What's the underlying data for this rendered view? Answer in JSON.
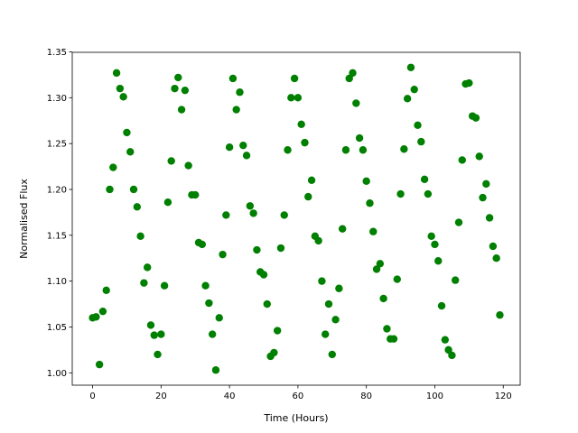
{
  "chart_data": {
    "type": "scatter",
    "xlabel": "Time (Hours)",
    "ylabel": "Normalised Flux",
    "color": "#008000",
    "x": [
      0,
      1,
      2,
      3,
      4,
      5,
      6,
      7,
      8,
      9,
      10,
      11,
      12,
      13,
      14,
      15,
      16,
      17,
      18,
      19,
      20,
      21,
      22,
      23,
      24,
      25,
      26,
      27,
      28,
      29,
      30,
      31,
      32,
      33,
      34,
      35,
      36,
      37,
      38,
      39,
      40,
      41,
      42,
      43,
      44,
      45,
      46,
      47,
      48,
      49,
      50,
      51,
      52,
      53,
      54,
      55,
      56,
      57,
      58,
      59,
      60,
      61,
      62,
      63,
      64,
      65,
      66,
      67,
      68,
      69,
      70,
      71,
      72,
      73,
      74,
      75,
      76,
      77,
      78,
      79,
      80,
      81,
      82,
      83,
      84,
      85,
      86,
      87,
      88,
      89,
      90,
      91,
      92,
      93,
      94,
      95,
      96,
      97,
      98,
      99,
      100,
      101,
      102,
      103,
      104,
      105,
      106,
      107,
      108,
      109,
      110,
      111,
      112,
      113,
      114,
      115,
      116,
      117,
      118,
      119
    ],
    "values": [
      1.06,
      1.061,
      1.009,
      1.067,
      1.09,
      1.2,
      1.224,
      1.327,
      1.31,
      1.301,
      1.262,
      1.241,
      1.2,
      1.181,
      1.149,
      1.098,
      1.115,
      1.052,
      1.041,
      1.02,
      1.042,
      1.095,
      1.186,
      1.231,
      1.31,
      1.322,
      1.287,
      1.308,
      1.226,
      1.194,
      1.194,
      1.142,
      1.14,
      1.095,
      1.076,
      1.042,
      1.003,
      1.06,
      1.129,
      1.172,
      1.246,
      1.321,
      1.287,
      1.306,
      1.248,
      1.237,
      1.182,
      1.174,
      1.134,
      1.11,
      1.107,
      1.075,
      1.018,
      1.022,
      1.046,
      1.136,
      1.172,
      1.243,
      1.3,
      1.321,
      1.3,
      1.271,
      1.251,
      1.192,
      1.21,
      1.149,
      1.144,
      1.1,
      1.042,
      1.075,
      1.02,
      1.058,
      1.092,
      1.157,
      1.243,
      1.321,
      1.327,
      1.294,
      1.256,
      1.243,
      1.209,
      1.185,
      1.154,
      1.113,
      1.119,
      1.081,
      1.048,
      1.037,
      1.037,
      1.102,
      1.195,
      1.244,
      1.299,
      1.333,
      1.309,
      1.27,
      1.252,
      1.211,
      1.195,
      1.149,
      1.14,
      1.122,
      1.073,
      1.036,
      1.025,
      1.019,
      1.101,
      1.164,
      1.232,
      1.315,
      1.316,
      1.28,
      1.278,
      1.236,
      1.191,
      1.206,
      1.169,
      1.138,
      1.125,
      1.063
    ],
    "xlim": [
      -5.95,
      124.95
    ],
    "ylim": [
      0.9865,
      1.3495
    ],
    "xticks": [
      0,
      20,
      40,
      60,
      80,
      100,
      120
    ],
    "yticks": [
      {
        "value": 1,
        "label": "1.00"
      },
      1.05,
      {
        "value": 1.1,
        "label": "1.10"
      },
      1.15,
      {
        "value": 1.2,
        "label": "1.20"
      },
      1.25,
      {
        "value": 1.3,
        "label": "1.30"
      },
      1.35
    ]
  }
}
